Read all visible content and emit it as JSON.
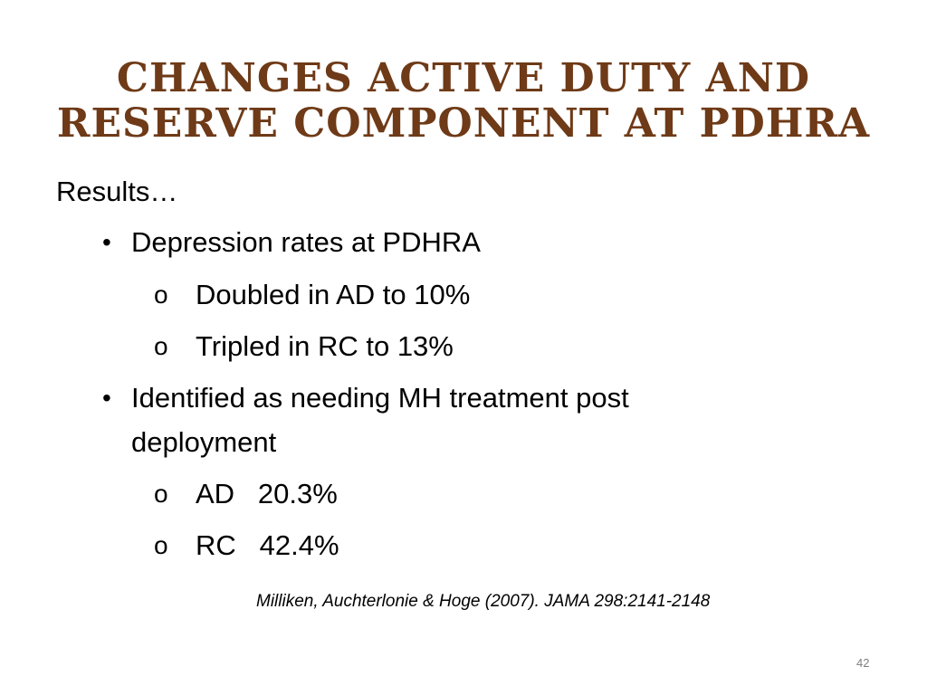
{
  "slide": {
    "title_line1": "Changes Active Duty and",
    "title_line2": "Reserve Component at PDHRA",
    "results_label": "Results…",
    "bullets": [
      {
        "marker": "•",
        "text": "Depression rates at PDHRA",
        "subitems": [
          {
            "marker": "o",
            "text": "Doubled in AD to 10%"
          },
          {
            "marker": "o",
            "text": "Tripled in RC to 13%"
          }
        ]
      },
      {
        "marker": "•",
        "text_line1": "Identified as needing MH treatment post",
        "text_line2": "deployment",
        "subitems": [
          {
            "marker": "o",
            "text": "AD   20.3%"
          },
          {
            "marker": "o",
            "text": "RC   42.4%"
          }
        ]
      }
    ],
    "citation": "Milliken, Auchterlonie & Hoge (2007). JAMA 298:2141-2148",
    "page_number": "42",
    "colors": {
      "title": "#6e3a17",
      "body_text": "#000000",
      "page_number": "#7f7f7f",
      "background": "#ffffff"
    }
  }
}
